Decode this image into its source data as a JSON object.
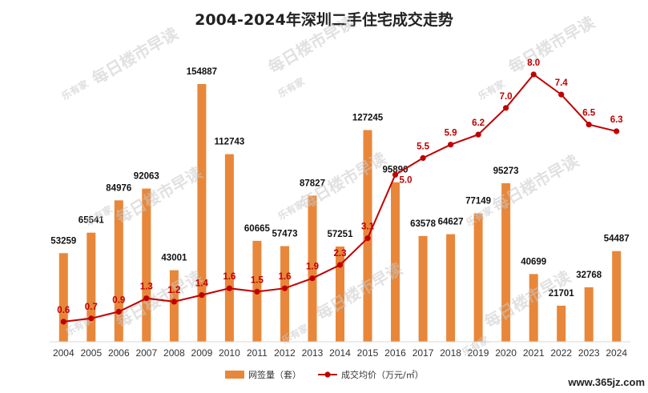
{
  "chart_data": {
    "type": "bar",
    "title": "2004-2024年深圳二手住宅成交走势",
    "categories": [
      "2004",
      "2005",
      "2006",
      "2007",
      "2008",
      "2009",
      "2010",
      "2011",
      "2012",
      "2013",
      "2014",
      "2015",
      "2016",
      "2017",
      "2018",
      "2019",
      "2020",
      "2021",
      "2022",
      "2023",
      "2024"
    ],
    "series": [
      {
        "name": "网签量（套）",
        "type": "bar",
        "color": "#e8873a",
        "values": [
          53259,
          65541,
          84976,
          92063,
          43001,
          154887,
          112743,
          60665,
          57473,
          87827,
          57251,
          127245,
          95890,
          63578,
          64627,
          77149,
          95273,
          40699,
          21701,
          32768,
          54487
        ]
      },
      {
        "name": "成交均价（万元/㎡）",
        "type": "line",
        "color": "#c00000",
        "values": [
          0.6,
          0.7,
          0.9,
          1.3,
          1.2,
          1.4,
          1.6,
          1.5,
          1.6,
          1.9,
          2.3,
          3.1,
          5.0,
          5.5,
          5.9,
          6.2,
          7.0,
          8.0,
          7.4,
          6.5,
          6.3
        ]
      }
    ],
    "bar_label_format": "integer",
    "line_label_format": "one_decimal",
    "ylim_left": [
      0,
      165000
    ],
    "ylim_right": [
      0,
      8.7
    ],
    "grid": false,
    "legend_position": "bottom"
  },
  "watermark": {
    "text": "每日楼市早读",
    "logo_text": "乐有家"
  },
  "credit": "www.365jz.com"
}
